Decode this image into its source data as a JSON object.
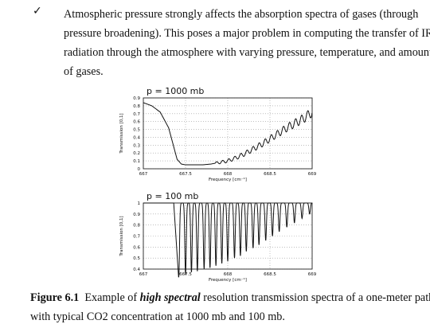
{
  "bullet": {
    "check_icon": "check-mark-icon",
    "lines": [
      "Atmospheric pressure strongly affects the absorption spectra of gases (through",
      "pressure broadening). This poses a major problem in computing the transfer of IR",
      "radiation through the atmosphere with varying pressure, temperature, and amount",
      "of gases."
    ]
  },
  "caption": {
    "label": "Figure 6.1",
    "pre": "Example of",
    "emph": "high spectral",
    "post": "resolution transmission spectra of a one-meter path",
    "line2": "with typical CO2 concentration at 1000 mb and 100 mb."
  },
  "chart_data": [
    {
      "type": "line",
      "title": "p = 1000 mb",
      "xlabel": "Frequency [cm⁻¹]",
      "ylabel": "Transmission [0,1]",
      "xlim": [
        667,
        669
      ],
      "ylim": [
        0,
        0.9
      ],
      "xticks": [
        "667",
        "667.5",
        "668",
        "668.5",
        "669"
      ],
      "yticks": [
        "0.9",
        "0.8",
        "0.7",
        "0.6",
        "0.5",
        "0.4",
        "0.3",
        "0.2",
        "0.1",
        "0"
      ],
      "grid": true,
      "x": [
        667,
        667.1,
        667.2,
        667.3,
        667.35,
        667.4,
        667.45,
        667.5,
        667.6,
        667.7,
        667.8,
        667.9,
        668.0,
        668.1,
        668.2,
        668.3,
        668.4,
        668.5,
        668.6,
        668.7,
        668.8,
        668.9,
        669.0
      ],
      "y": [
        0.84,
        0.8,
        0.72,
        0.52,
        0.32,
        0.12,
        0.06,
        0.05,
        0.05,
        0.05,
        0.06,
        0.08,
        0.1,
        0.14,
        0.19,
        0.25,
        0.31,
        0.38,
        0.45,
        0.52,
        0.58,
        0.64,
        0.72
      ]
    },
    {
      "type": "line",
      "title": "p = 100 mb",
      "xlabel": "Frequency [cm⁻¹]",
      "ylabel": "Transmission [0,1]",
      "xlim": [
        667,
        669
      ],
      "ylim": [
        0.4,
        1
      ],
      "xticks": [
        "667",
        "667.5",
        "668",
        "668.5",
        "669"
      ],
      "yticks": [
        "1",
        "0.9",
        "0.8",
        "0.7",
        "0.6",
        "0.5",
        "0.4"
      ],
      "grid": true,
      "baseline": 1.0,
      "line_positions": [
        667.42,
        667.5,
        667.57,
        667.64,
        667.72,
        667.79,
        667.86,
        667.93,
        668.0,
        668.08,
        668.15,
        668.22,
        668.3,
        668.37,
        668.45,
        668.53,
        668.61,
        668.7,
        668.79,
        668.88,
        668.97
      ],
      "line_minima": [
        0.33,
        0.35,
        0.37,
        0.38,
        0.4,
        0.41,
        0.43,
        0.45,
        0.47,
        0.5,
        0.52,
        0.56,
        0.59,
        0.62,
        0.66,
        0.7,
        0.74,
        0.78,
        0.82,
        0.86,
        0.9
      ]
    }
  ]
}
